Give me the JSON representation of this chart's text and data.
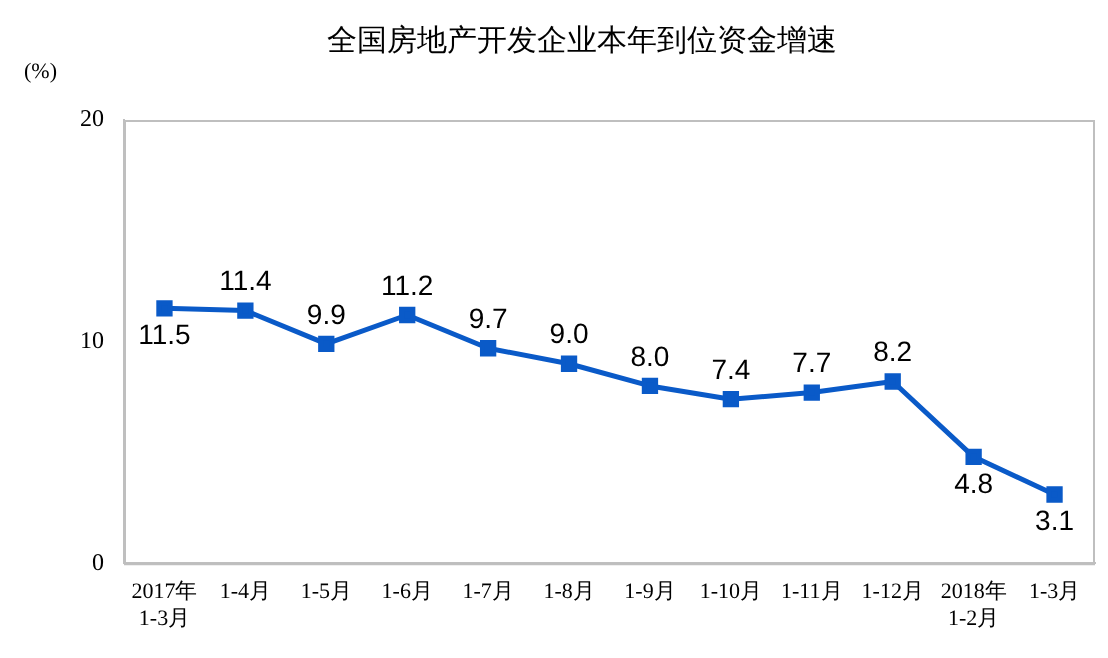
{
  "chart_data": {
    "type": "line",
    "title": "全国房地产开发企业本年到位资金增速",
    "ylabel": "(%)",
    "categories": [
      "2017年\n1-3月",
      "1-4月",
      "1-5月",
      "1-6月",
      "1-7月",
      "1-8月",
      "1-9月",
      "1-10月",
      "1-11月",
      "1-12月",
      "2018年\n1-2月",
      "1-3月"
    ],
    "series": [
      {
        "color": "#0a5ac8",
        "values": [
          11.5,
          11.4,
          9.9,
          11.2,
          9.7,
          9.0,
          8.0,
          7.4,
          7.7,
          8.2,
          4.8,
          3.1
        ]
      }
    ],
    "value_labels": [
      "11.5",
      "11.4",
      "9.9",
      "11.2",
      "9.7",
      "9.0",
      "8.0",
      "7.4",
      "7.7",
      "8.2",
      "4.8",
      "3.1"
    ],
    "ylim": [
      0,
      20
    ],
    "yticks": [
      0,
      10,
      20
    ],
    "grid": false,
    "legend": false,
    "marker": "square",
    "line_style": "solid"
  }
}
